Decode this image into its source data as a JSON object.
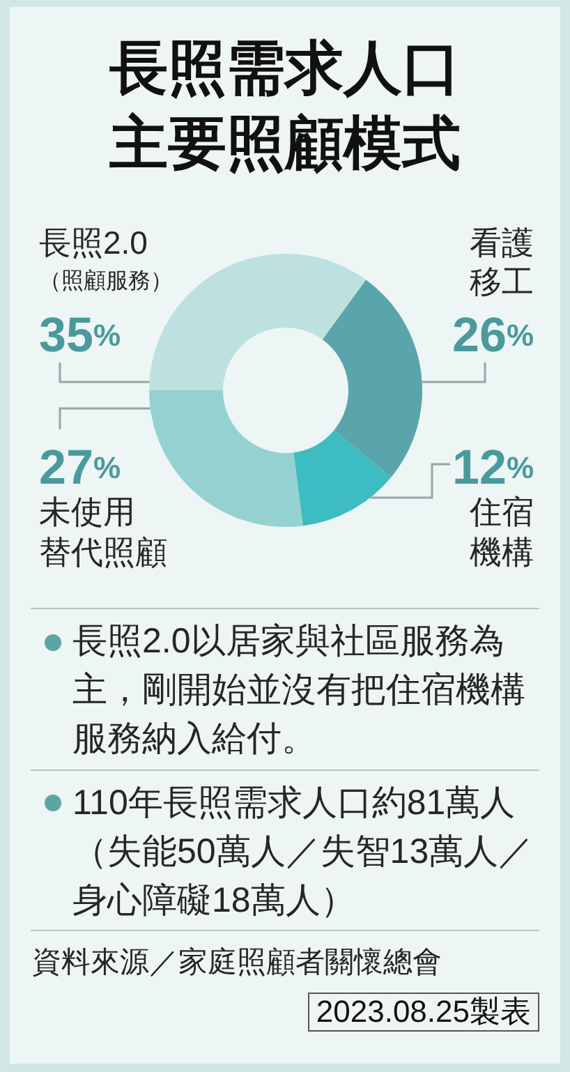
{
  "chart_data": {
    "type": "donut",
    "title": "長照需求人口主要照顧模式",
    "categories": [
      "長照2.0（照顧服務）",
      "看護移工",
      "住宿機構",
      "未使用替代照顧"
    ],
    "values": [
      35,
      26,
      12,
      27
    ],
    "colors": [
      "#bde1de",
      "#5aa5ab",
      "#3dbcc1",
      "#96d1d1"
    ],
    "value_labels": [
      "35%",
      "26%",
      "12%",
      "27%"
    ],
    "annotations": [
      "長照2.0以居家與社區服務為主，剛開始並沒有把住宿機構服務納入給付。",
      "110年長照需求人口約81萬人（失能50萬人／失智13萬人／身心障礙18萬人）",
      "資料來源／家庭照顧者關懷總會",
      "2023.08.25製表"
    ]
  }
}
